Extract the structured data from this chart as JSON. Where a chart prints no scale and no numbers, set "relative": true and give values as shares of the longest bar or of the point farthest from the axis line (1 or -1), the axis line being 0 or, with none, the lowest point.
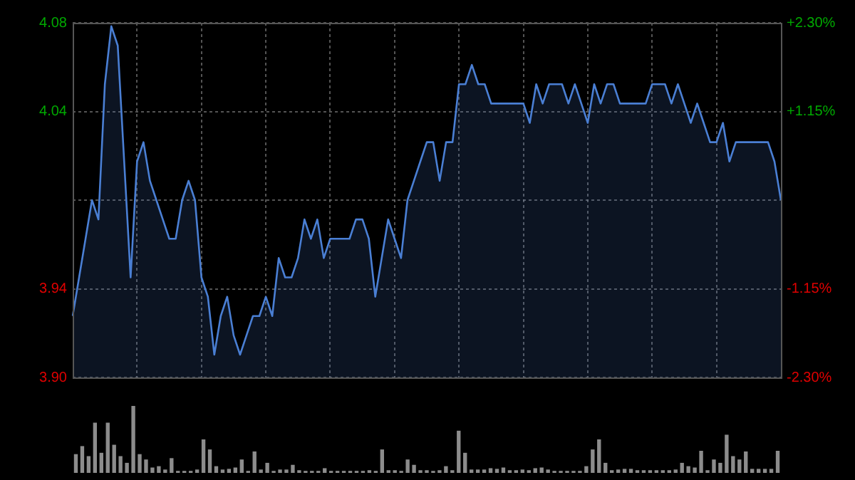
{
  "chart_data": [
    {
      "type": "area",
      "categories": [
        null,
        null,
        null,
        null,
        null,
        null,
        null,
        null,
        null,
        null,
        null,
        null,
        null,
        null,
        null,
        null,
        null,
        null,
        null,
        null,
        null,
        null,
        null,
        null,
        null,
        null,
        null,
        null,
        null,
        null,
        null,
        null,
        null,
        null,
        null,
        null,
        null,
        null,
        null,
        null,
        null,
        null,
        null,
        null,
        null,
        null,
        null,
        null,
        null,
        null,
        null,
        null,
        null,
        null,
        null,
        null,
        null,
        null,
        null,
        null,
        null,
        null,
        null,
        null,
        null,
        null,
        null,
        null,
        null,
        null,
        null,
        null,
        null,
        null,
        null,
        null,
        null,
        null,
        null,
        null,
        null,
        null,
        null,
        null,
        null,
        null,
        null,
        null,
        null,
        null,
        null,
        null,
        null,
        null,
        null,
        null,
        null,
        null,
        null,
        null,
        null,
        null,
        null,
        null,
        null,
        null,
        null,
        null,
        null,
        null,
        null
      ],
      "series": [
        {
          "color": "#4a7fd4",
          "values": [
            3.93,
            3.95,
            3.97,
            3.99,
            3.98,
            4.05,
            4.08,
            4.07,
            4.01,
            3.95,
            4.01,
            4.02,
            4.0,
            3.99,
            3.98,
            3.97,
            3.97,
            3.99,
            4.0,
            3.99,
            3.95,
            3.94,
            3.91,
            3.93,
            3.94,
            3.92,
            3.91,
            3.92,
            3.93,
            3.93,
            3.94,
            3.93,
            3.96,
            3.95,
            3.95,
            3.96,
            3.98,
            3.97,
            3.98,
            3.96,
            3.97,
            3.97,
            3.97,
            3.97,
            3.98,
            3.98,
            3.97,
            3.94,
            3.96,
            3.98,
            3.97,
            3.96,
            3.99,
            4.0,
            4.01,
            4.02,
            4.02,
            4.0,
            4.02,
            4.02,
            4.05,
            4.05,
            4.06,
            4.05,
            4.05,
            4.04,
            4.04,
            4.04,
            4.04,
            4.04,
            4.04,
            4.03,
            4.05,
            4.04,
            4.05,
            4.05,
            4.05,
            4.04,
            4.05,
            4.04,
            4.03,
            4.05,
            4.04,
            4.05,
            4.05,
            4.04,
            4.04,
            4.04,
            4.04,
            4.04,
            4.05,
            4.05,
            4.05,
            4.04,
            4.05,
            4.04,
            4.03,
            4.04,
            4.03,
            4.02,
            4.02,
            4.03,
            4.01,
            4.02,
            4.02,
            4.02,
            4.02,
            4.02,
            4.02,
            4.01,
            3.99
          ]
        }
      ],
      "ylim": [
        3.8982,
        4.0818
      ],
      "yticks": [
        {
          "value": 4.0818,
          "label": "4.08"
        },
        {
          "value": 4.0359,
          "label": "4.04"
        },
        {
          "value": 3.99,
          "label": null
        },
        {
          "value": 3.9441,
          "label": "3.94"
        },
        {
          "value": 3.8982,
          "label": "3.90"
        }
      ],
      "y2lim": [
        -2.3,
        2.3
      ],
      "y2ticks": [
        {
          "value": 2.3,
          "label": "+2.30%"
        },
        {
          "value": 1.15,
          "label": "+1.15%"
        },
        {
          "value": 0,
          "label": null
        },
        {
          "value": -1.15,
          "label": "-1.15%"
        },
        {
          "value": -2.3,
          "label": "-2.30%"
        }
      ],
      "grid": true,
      "legend": false,
      "marker": "none",
      "line_style": "solid"
    },
    {
      "type": "bar",
      "relative": true,
      "categories": [
        null,
        null,
        null,
        null,
        null,
        null,
        null,
        null,
        null,
        null,
        null,
        null,
        null,
        null,
        null,
        null,
        null,
        null,
        null,
        null,
        null,
        null,
        null,
        null,
        null,
        null,
        null,
        null,
        null,
        null,
        null,
        null,
        null,
        null,
        null,
        null,
        null,
        null,
        null,
        null,
        null,
        null,
        null,
        null,
        null,
        null,
        null,
        null,
        null,
        null,
        null,
        null,
        null,
        null,
        null,
        null,
        null,
        null,
        null,
        null,
        null,
        null,
        null,
        null,
        null,
        null,
        null,
        null,
        null,
        null,
        null,
        null,
        null,
        null,
        null,
        null,
        null,
        null,
        null,
        null,
        null,
        null,
        null,
        null,
        null,
        null,
        null,
        null,
        null,
        null,
        null,
        null,
        null,
        null,
        null,
        null,
        null,
        null,
        null,
        null,
        null,
        null,
        null,
        null,
        null,
        null,
        null,
        null,
        null,
        null,
        null
      ],
      "series": [
        {
          "color": "#8c8c8c",
          "values": [
            0.28,
            0.4,
            0.25,
            0.75,
            0.3,
            0.75,
            0.42,
            0.25,
            0.15,
            1,
            0.28,
            0.2,
            0.08,
            0.1,
            0.05,
            0.22,
            0.03,
            0.03,
            0.03,
            0.05,
            0.5,
            0.35,
            0.1,
            0.05,
            0.06,
            0.08,
            0.2,
            0.03,
            0.32,
            0.05,
            0.15,
            0.03,
            0.05,
            0.05,
            0.12,
            0.04,
            0.03,
            0.03,
            0.03,
            0.07,
            0.03,
            0.03,
            0.03,
            0.03,
            0.03,
            0.03,
            0.04,
            0.03,
            0.35,
            0.04,
            0.04,
            0.03,
            0.2,
            0.12,
            0.04,
            0.04,
            0.03,
            0.04,
            0.1,
            0.04,
            0.63,
            0.3,
            0.05,
            0.05,
            0.05,
            0.07,
            0.06,
            0.08,
            0.04,
            0.04,
            0.05,
            0.04,
            0.07,
            0.08,
            0.05,
            0.03,
            0.03,
            0.03,
            0.03,
            0.03,
            0.1,
            0.35,
            0.5,
            0.15,
            0.04,
            0.05,
            0.06,
            0.06,
            0.04,
            0.04,
            0.04,
            0.04,
            0.04,
            0.04,
            0.05,
            0.15,
            0.1,
            0.08,
            0.33,
            0.04,
            0.2,
            0.15,
            0.57,
            0.25,
            0.2,
            0.32,
            0.06,
            0.06,
            0.06,
            0.06,
            0.33
          ]
        }
      ],
      "legend": false
    }
  ]
}
